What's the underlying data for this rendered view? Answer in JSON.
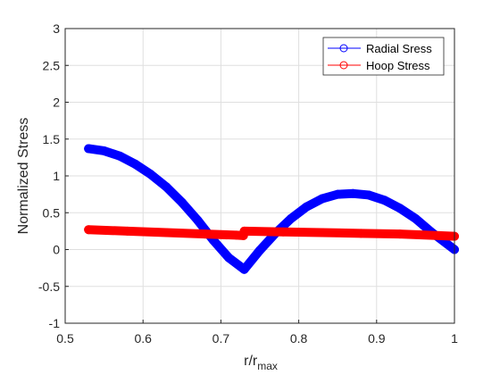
{
  "chart_data": {
    "type": "line",
    "title": "",
    "xlabel_main": "r/r",
    "xlabel_sub": "max",
    "ylabel": "Normalized Stress",
    "xlim": [
      0.5,
      1
    ],
    "ylim": [
      -1,
      3
    ],
    "xticks": [
      0.5,
      0.6,
      0.7,
      0.8,
      0.9,
      1
    ],
    "xtick_labels": [
      "0.5",
      "0.6",
      "0.7",
      "0.8",
      "0.9",
      "1"
    ],
    "yticks": [
      -1,
      -0.5,
      0,
      0.5,
      1,
      1.5,
      2,
      2.5,
      3
    ],
    "ytick_labels": [
      "-1",
      "-0.5",
      "0",
      "0.5",
      "1",
      "1.5",
      "2",
      "2.5",
      "3"
    ],
    "grid": true,
    "legend_position": "top-right",
    "series": [
      {
        "name": "Radial Sress",
        "color": "#0000ff",
        "marker": "circle",
        "x": [
          0.53,
          0.55,
          0.57,
          0.59,
          0.61,
          0.63,
          0.65,
          0.67,
          0.69,
          0.71,
          0.73,
          0.75,
          0.77,
          0.79,
          0.81,
          0.83,
          0.85,
          0.87,
          0.89,
          0.91,
          0.93,
          0.95,
          0.97,
          0.99,
          1.0
        ],
        "y": [
          1.37,
          1.34,
          1.27,
          1.16,
          1.02,
          0.85,
          0.64,
          0.4,
          0.13,
          -0.11,
          -0.27,
          -0.01,
          0.22,
          0.42,
          0.58,
          0.69,
          0.75,
          0.76,
          0.74,
          0.67,
          0.56,
          0.42,
          0.24,
          0.08,
          0.0
        ]
      },
      {
        "name": "Hoop Stress",
        "color": "#ff0000",
        "marker": "circle",
        "x": [
          0.53,
          0.58,
          0.63,
          0.68,
          0.72,
          0.729,
          0.73,
          0.78,
          0.83,
          0.88,
          0.93,
          0.98,
          1.0
        ],
        "y": [
          0.27,
          0.25,
          0.23,
          0.21,
          0.195,
          0.19,
          0.25,
          0.24,
          0.23,
          0.22,
          0.21,
          0.19,
          0.18
        ]
      }
    ]
  }
}
